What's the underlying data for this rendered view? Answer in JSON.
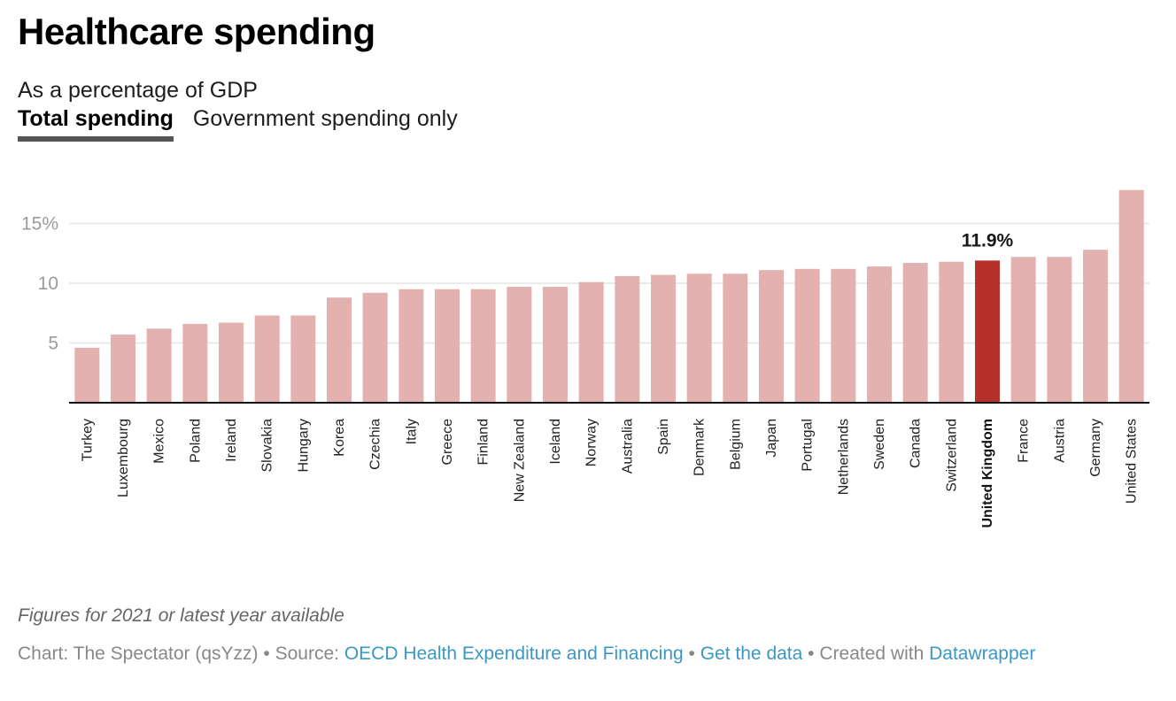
{
  "header": {
    "title": "Healthcare spending",
    "subtitle": "As a percentage of GDP",
    "tabs": [
      {
        "label": "Total spending",
        "active": true
      },
      {
        "label": "Government spending only",
        "active": false
      }
    ]
  },
  "chart_data": {
    "type": "bar",
    "title": "Healthcare spending",
    "subtitle": "As a percentage of GDP",
    "xlabel": "",
    "ylabel": "",
    "ylim": [
      0,
      18
    ],
    "yticks": [
      5,
      10,
      15
    ],
    "ytick_labels": [
      "5",
      "10",
      "15%"
    ],
    "grid": true,
    "categories": [
      "Turkey",
      "Luxembourg",
      "Mexico",
      "Poland",
      "Ireland",
      "Slovakia",
      "Hungary",
      "Korea",
      "Czechia",
      "Italy",
      "Greece",
      "Finland",
      "New Zealand",
      "Iceland",
      "Norway",
      "Australia",
      "Spain",
      "Denmark",
      "Belgium",
      "Japan",
      "Portugal",
      "Netherlands",
      "Sweden",
      "Canada",
      "Switzerland",
      "United Kingdom",
      "France",
      "Austria",
      "Germany",
      "United States"
    ],
    "values": [
      4.6,
      5.7,
      6.2,
      6.6,
      6.7,
      7.3,
      7.3,
      8.8,
      9.2,
      9.5,
      9.5,
      9.5,
      9.7,
      9.7,
      10.1,
      10.6,
      10.7,
      10.8,
      10.8,
      11.1,
      11.2,
      11.2,
      11.4,
      11.7,
      11.8,
      11.9,
      12.2,
      12.2,
      12.8,
      17.8
    ],
    "highlight": {
      "category": "United Kingdom",
      "label": "11.9%"
    },
    "colors": {
      "bar": "#e2b1b0",
      "highlight": "#b5312a",
      "grid": "#e4e4e4",
      "axis": "#111111"
    }
  },
  "notes": "Figures for 2021 or latest year available",
  "footer": {
    "chart_by": "Chart: The Spectator (qsYzz)",
    "sep": " • ",
    "source_prefix": "Source: ",
    "source_link": "OECD Health Expenditure and Financing",
    "get_data": "Get the data",
    "created_prefix": "Created with ",
    "created_link": "Datawrapper"
  }
}
